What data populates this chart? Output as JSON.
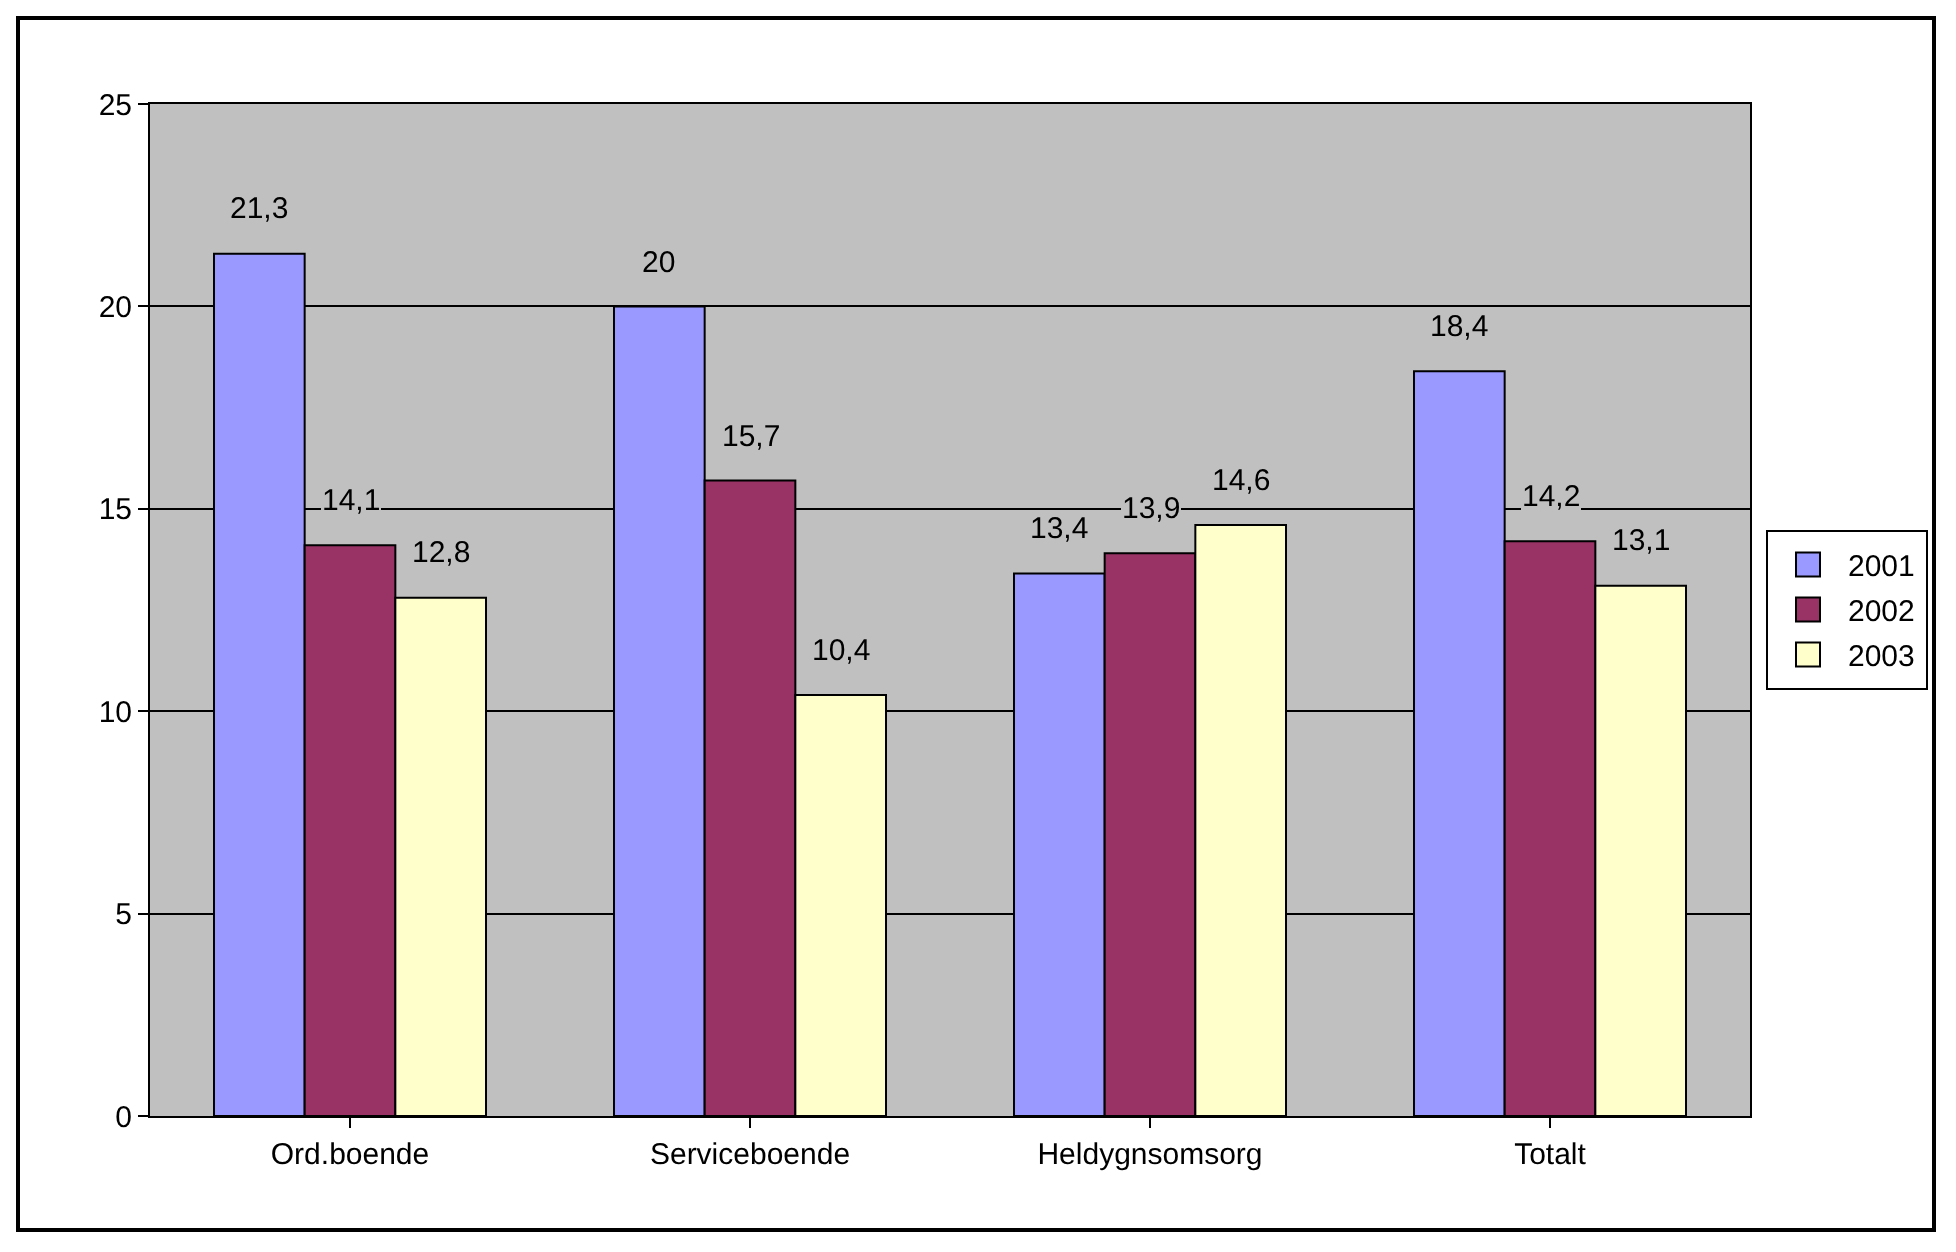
{
  "chart_data": {
    "type": "bar",
    "categories": [
      "Ord.boende",
      "Serviceboende",
      "Heldygnsomsorg",
      "Totalt"
    ],
    "series": [
      {
        "name": "2001",
        "color": "#9999ff",
        "values": [
          21.3,
          20,
          13.4,
          18.4
        ],
        "value_labels": [
          "21,3",
          "20",
          "13,4",
          "18,4"
        ]
      },
      {
        "name": "2002",
        "color": "#993366",
        "values": [
          14.1,
          15.7,
          13.9,
          14.2
        ],
        "value_labels": [
          "14,1",
          "15,7",
          "13,9",
          "14,2"
        ]
      },
      {
        "name": "2003",
        "color": "#ffffcc",
        "values": [
          12.8,
          10.4,
          14.6,
          13.1
        ],
        "value_labels": [
          "12,8",
          "10,4",
          "14,6",
          "13,1"
        ]
      }
    ],
    "ylim": [
      0,
      25
    ],
    "yticks": [
      0,
      5,
      10,
      15,
      20,
      25
    ],
    "grid": "y",
    "legend": "right"
  }
}
